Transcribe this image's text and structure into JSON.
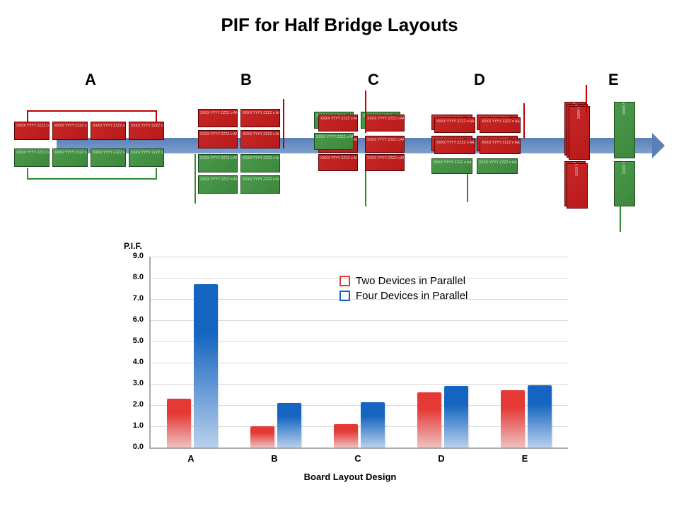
{
  "title": "PIF for Half Bridge Layouts",
  "colors": {
    "red_block": "#c62828",
    "red_block_dark": "#b81a1a",
    "green_block": "#4a9a4a",
    "green_block_dark": "#3d873d",
    "arrow": "#5a80b8",
    "bracket_red": "#c00000",
    "bracket_green": "#2e8b2e",
    "bar_red_top": "#e53935",
    "bar_red_bottom": "#efc0c0",
    "bar_blue_top": "#1565c0",
    "bar_blue_bottom": "#b8d0ec"
  },
  "diagram_labels": [
    "A",
    "B",
    "C",
    "D",
    "E"
  ],
  "block_text_lines": [
    "XXXX",
    "YYYY",
    "ZZZZ",
    "o",
    "AAAA"
  ],
  "chart": {
    "type": "bar",
    "ytitle": "P.I.F.",
    "xtitle": "Board Layout Design",
    "ylim": [
      0,
      9
    ],
    "ytick_step": 1.0,
    "categories": [
      "A",
      "B",
      "C",
      "D",
      "E"
    ],
    "series": [
      {
        "name": "Two Devices in Parallel",
        "values": [
          2.3,
          1.0,
          1.1,
          2.6,
          2.7
        ],
        "color_key": "red"
      },
      {
        "name": "Four Devices in Parallel",
        "values": [
          7.7,
          2.1,
          2.15,
          2.9,
          2.95
        ],
        "color_key": "blue"
      }
    ],
    "legend": [
      {
        "swatch_border": "#e53935",
        "label": "Two Devices in Parallel"
      },
      {
        "swatch_border": "#1565c0",
        "label": "Four Devices in Parallel"
      }
    ],
    "grid_color": "#d9d9d9",
    "axis_color": "#aaaaaa",
    "tick_label_fontsize": 11,
    "category_fontsize": 13,
    "legend_fontsize": 15
  }
}
